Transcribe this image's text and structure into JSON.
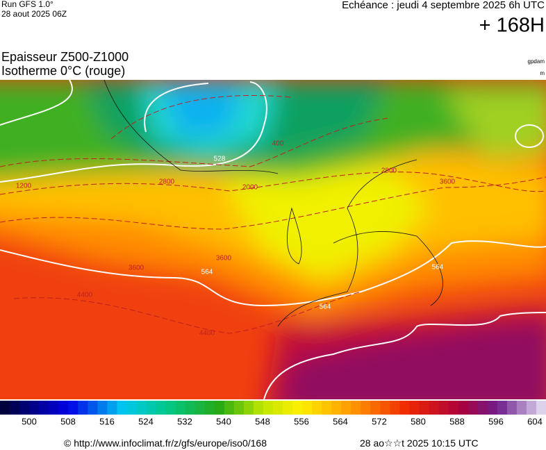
{
  "header": {
    "model": "Run GFS 1.0°",
    "run": "28 aout 2025 06Z",
    "valid": "Echéance : jeudi 4 septembre 2025 6h UTC",
    "lead": "+ 168H"
  },
  "title": {
    "line1": "Epaisseur Z500-Z1000",
    "line2": "Isotherme 0°C (rouge)",
    "unit1": "gpdam",
    "unit2": "m"
  },
  "map": {
    "contour_labels": [
      "528",
      "564",
      "564",
      "564",
      "400",
      "1200",
      "2000",
      "2800",
      "2800",
      "3600",
      "3600",
      "3600",
      "4400",
      "4400"
    ]
  },
  "colorbar": {
    "labels": [
      500,
      508,
      516,
      524,
      532,
      540,
      548,
      556,
      564,
      572,
      580,
      588,
      596,
      604
    ]
  },
  "footer": {
    "source": "© http://www.infoclimat.fr/z/gfs/europe/iso0/168",
    "timestamp": "28 ao☆☆t 2025 10:15 UTC"
  }
}
